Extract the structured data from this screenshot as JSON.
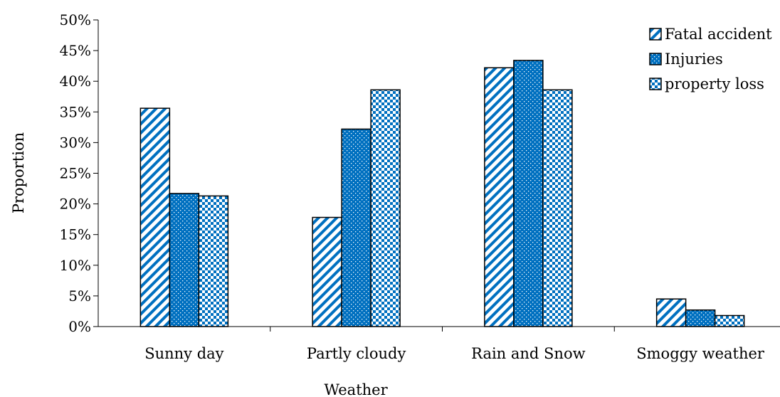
{
  "chart_data": {
    "type": "bar",
    "categories": [
      "Sunny day",
      "Partly cloudy",
      "Rain and Snow",
      "Smoggy weather"
    ],
    "series": [
      {
        "name": "Fatal accident",
        "values": [
          35.6,
          17.8,
          42.2,
          4.5
        ],
        "color": "#0070c0",
        "pattern": "diagonal-stripes"
      },
      {
        "name": "Injuries",
        "values": [
          21.7,
          32.2,
          43.4,
          2.7
        ],
        "color": "#0070c0",
        "pattern": "dotted"
      },
      {
        "name": "property loss",
        "values": [
          21.3,
          38.6,
          38.6,
          1.8
        ],
        "color": "#0070c0",
        "pattern": "checkerboard"
      }
    ],
    "ylim": [
      0,
      50
    ],
    "yticks": [
      0,
      5,
      10,
      15,
      20,
      25,
      30,
      35,
      40,
      45,
      50
    ],
    "ytick_suffix": "%",
    "xlabel": "Weather",
    "ylabel": "Proportion",
    "legend": "top-right",
    "grid": false
  }
}
